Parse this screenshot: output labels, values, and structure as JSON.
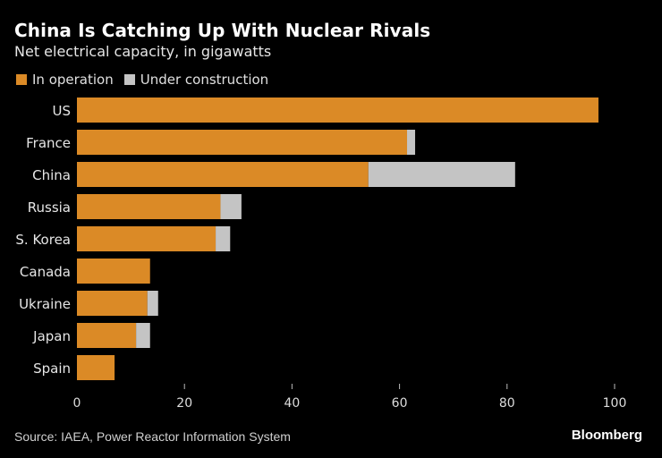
{
  "header": {
    "title": "China Is Catching Up With Nuclear Rivals",
    "subtitle": "Net electrical capacity, in gigawatts"
  },
  "legend": [
    {
      "label": "In operation",
      "color": "#db8a26"
    },
    {
      "label": "Under construction",
      "color": "#c4c4c4"
    }
  ],
  "footer": {
    "source": "Source: IAEA, Power Reactor Information System",
    "logo": "Bloomberg"
  },
  "chart_data": {
    "type": "bar",
    "orientation": "horizontal",
    "stacked": true,
    "title": "China Is Catching Up With Nuclear Rivals",
    "subtitle": "Net electrical capacity, in gigawatts",
    "xlabel": "",
    "ylabel": "",
    "categories": [
      "US",
      "France",
      "China",
      "Russia",
      "S. Korea",
      "Canada",
      "Ukraine",
      "Japan",
      "Spain"
    ],
    "series": [
      {
        "name": "In operation",
        "color": "#db8a26",
        "values": [
          97.0,
          61.4,
          54.2,
          26.7,
          25.8,
          13.6,
          13.1,
          11.0,
          7.0
        ]
      },
      {
        "name": "Under construction",
        "color": "#c4c4c4",
        "values": [
          0,
          1.5,
          27.3,
          3.9,
          2.7,
          0,
          2.0,
          2.6,
          0
        ]
      }
    ],
    "xlim": [
      0,
      100
    ],
    "xticks": [
      0,
      20,
      40,
      60,
      80,
      100
    ],
    "grid": false,
    "legend_position": "top-left"
  }
}
